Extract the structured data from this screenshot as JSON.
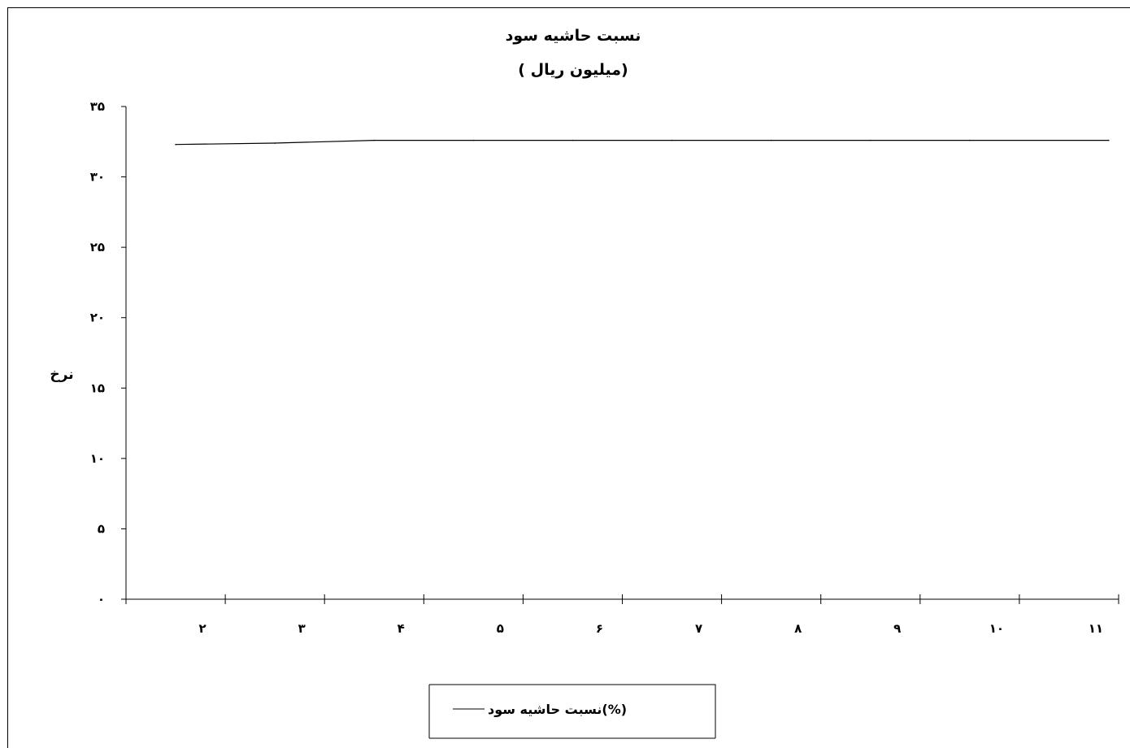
{
  "chart_data": {
    "type": "line",
    "title": "نسبت حاشیه سود",
    "subtitle": "( میلیون ریال)",
    "ylabel": "نرخ",
    "xlabel": "",
    "categories": [
      "۲",
      "۳",
      "۴",
      "۵",
      "۶",
      "۷",
      "۸",
      "۹",
      "۱۰",
      "۱۱"
    ],
    "y_tick_labels": [
      "۰",
      "۵",
      "۱۰",
      "۱۵",
      "۲۰",
      "۲۵",
      "۳۰",
      "۳۵"
    ],
    "ylim": [
      0,
      35
    ],
    "grid": false,
    "legend_position": "bottom",
    "series": [
      {
        "name": "نسبت حاشیه سود(%)",
        "color": "#000000",
        "values": [
          32.3,
          32.4,
          32.6,
          32.6,
          32.6,
          32.6,
          32.6,
          32.6,
          32.6,
          32.6
        ]
      }
    ]
  }
}
